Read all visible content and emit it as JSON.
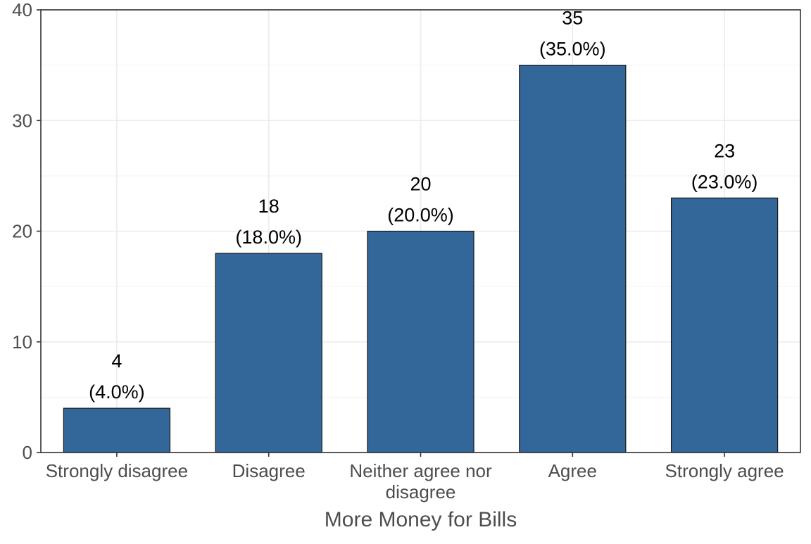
{
  "chart_data": {
    "type": "bar",
    "categories": [
      [
        "Strongly disagree"
      ],
      [
        "Disagree"
      ],
      [
        "Neither agree nor",
        "disagree"
      ],
      [
        "Agree"
      ],
      [
        "Strongly agree"
      ]
    ],
    "values": [
      4,
      18,
      20,
      35,
      23
    ],
    "data_labels": [
      [
        "4",
        "(4.0%)"
      ],
      [
        "18",
        "(18.0%)"
      ],
      [
        "20",
        "(20.0%)"
      ],
      [
        "35",
        "(35.0%)"
      ],
      [
        "23",
        "(23.0%)"
      ]
    ],
    "title": "",
    "xlabel": "More Money for Bills",
    "ylabel": "",
    "ylim": [
      0,
      40
    ],
    "yticks": [
      0,
      10,
      20,
      30,
      40
    ],
    "grid": true,
    "legend": "none",
    "colors": {
      "bar_fill": "#336699",
      "bar_outline": "#1a1a1a",
      "panel_border": "#333333",
      "text": "#4d4d4d"
    }
  }
}
